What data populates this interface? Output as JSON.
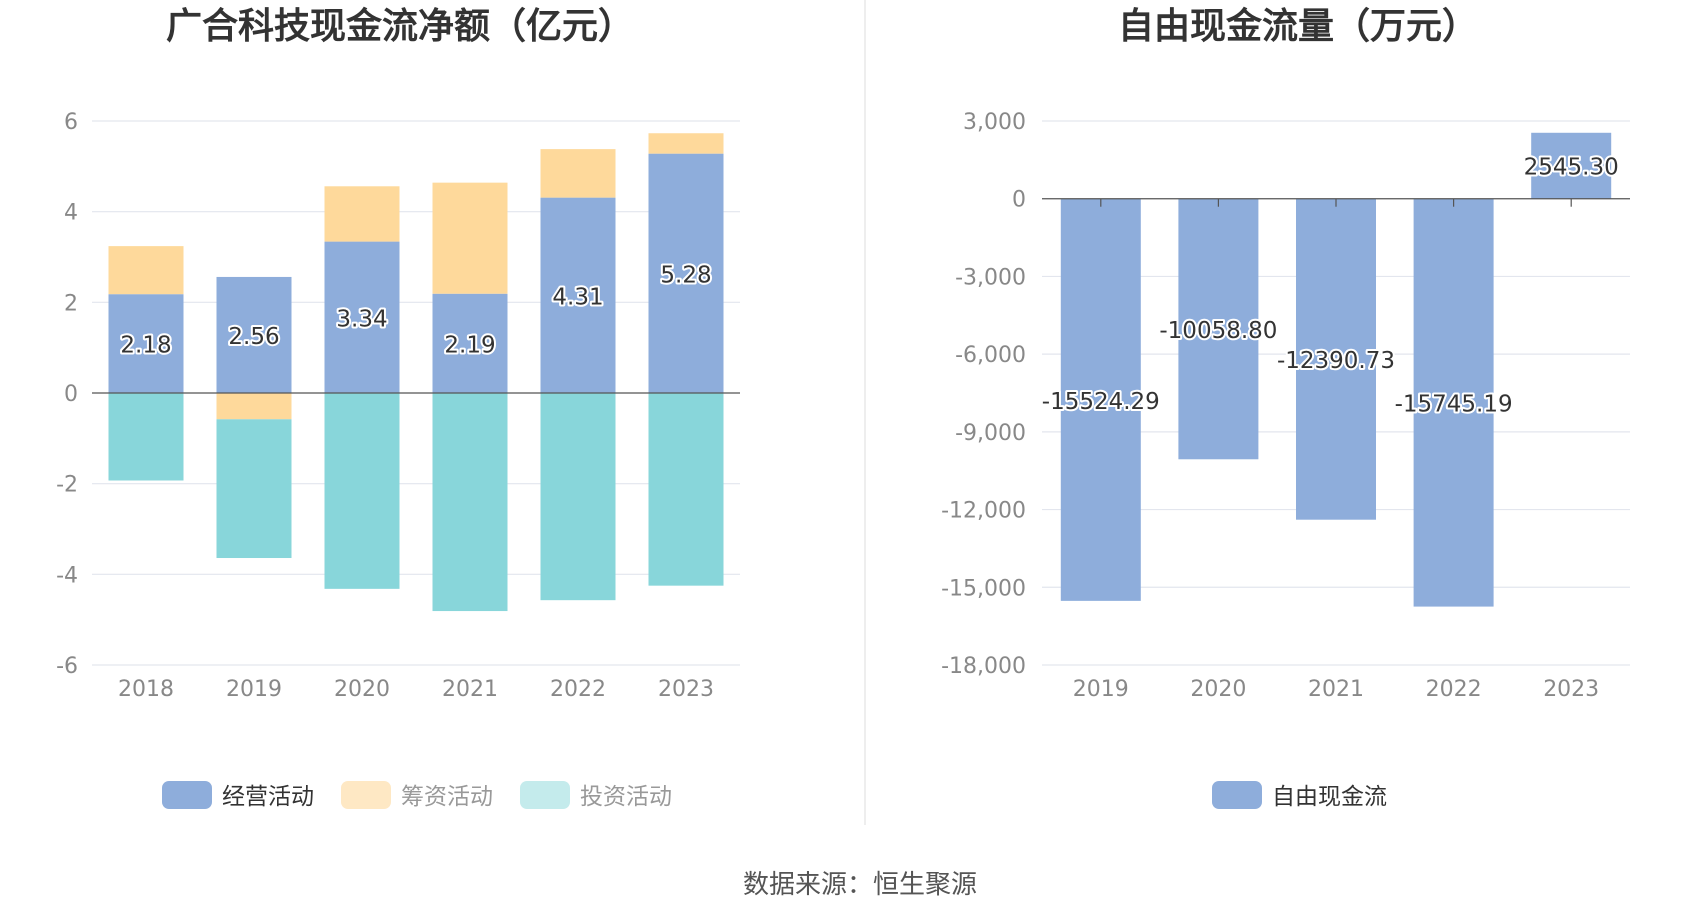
{
  "colors": {
    "operating": "#8eaddb",
    "financing": "#fed99b",
    "investing": "#88d6da",
    "free_cash_flow": "#8eaddb",
    "grid": "#e3e6ee",
    "axis": "#555555"
  },
  "source_text": "数据来源：恒生聚源",
  "chart_data": [
    {
      "type": "bar",
      "stacked": true,
      "title": "广合科技现金流净额（亿元）",
      "categories": [
        "2018",
        "2019",
        "2020",
        "2021",
        "2022",
        "2023"
      ],
      "ylim": [
        -6,
        6
      ],
      "yticks": [
        "6",
        "4",
        "2",
        "0",
        "-2",
        "-4",
        "-6"
      ],
      "ytick_values": [
        6,
        4,
        2,
        0,
        -2,
        -4,
        -6
      ],
      "grid": true,
      "legend_position": "bottom",
      "series": [
        {
          "name": "经营活动",
          "key": "operating",
          "values": [
            2.18,
            2.56,
            3.34,
            2.19,
            4.31,
            5.28
          ],
          "labels": [
            "2.18",
            "2.56",
            "3.34",
            "2.19",
            "4.31",
            "5.28"
          ]
        },
        {
          "name": "筹资活动",
          "key": "financing",
          "values": [
            1.06,
            -0.58,
            1.22,
            2.45,
            1.07,
            0.45
          ]
        },
        {
          "name": "投资活动",
          "key": "investing",
          "values": [
            -1.93,
            -3.06,
            -4.32,
            -4.81,
            -4.57,
            -4.25
          ]
        }
      ]
    },
    {
      "type": "bar",
      "title": "自由现金流量（万元）",
      "categories": [
        "2019",
        "2020",
        "2021",
        "2022",
        "2023"
      ],
      "ylim": [
        -18000,
        3000
      ],
      "yticks": [
        "3,000",
        "0",
        "-3,000",
        "-6,000",
        "-9,000",
        "-12,000",
        "-15,000",
        "-18,000"
      ],
      "ytick_values": [
        3000,
        0,
        -3000,
        -6000,
        -9000,
        -12000,
        -15000,
        -18000
      ],
      "grid": true,
      "legend_position": "bottom",
      "series": [
        {
          "name": "自由现金流",
          "key": "free_cash_flow",
          "values": [
            -15524.29,
            -10058.8,
            -12390.73,
            -15745.19,
            2545.3
          ],
          "labels": [
            "-15524.29",
            "-10058.80",
            "-12390.73",
            "-15745.19",
            "2545.30"
          ]
        }
      ]
    }
  ]
}
